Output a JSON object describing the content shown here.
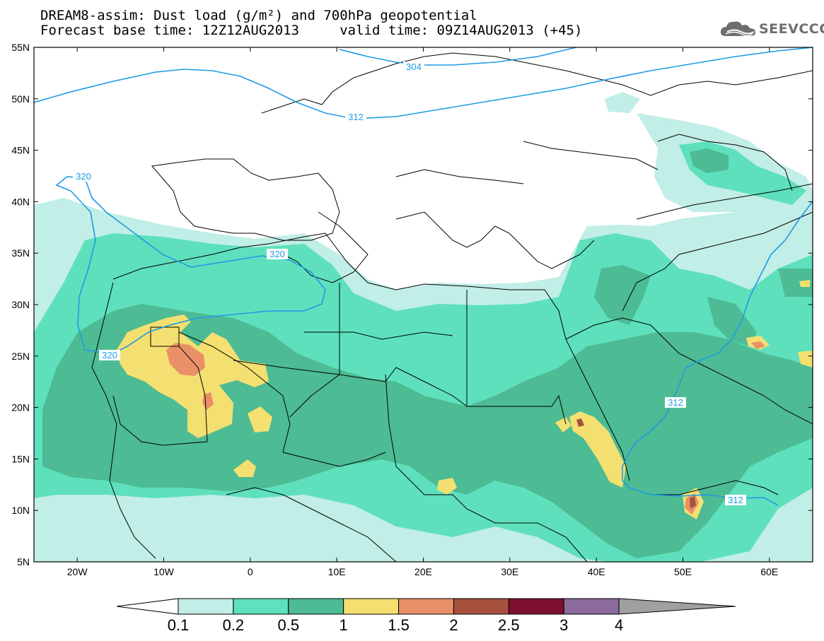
{
  "header": {
    "title_line1": "DREAM8-assim: Dust load (g/m²) and 700hPa geopotential",
    "title_line2": "Forecast base time: 12Z12AUG2013     valid time: 09Z14AUG2013 (+45)"
  },
  "logo": {
    "icon": "cloud-logo-icon",
    "text": "SEEVCCC"
  },
  "map": {
    "lon_range": [
      -25,
      65
    ],
    "lat_range": [
      5,
      55
    ],
    "lat_labels": [
      "55N",
      "50N",
      "45N",
      "40N",
      "35N",
      "30N",
      "25N",
      "20N",
      "15N",
      "10N",
      "5N"
    ],
    "lon_labels": [
      "20W",
      "10W",
      "0",
      "10E",
      "20E",
      "30E",
      "40E",
      "50E",
      "60E"
    ],
    "contour_labels": [
      "304",
      "312",
      "320",
      "320",
      "320",
      "312",
      "312"
    ]
  },
  "colorbar": {
    "labels": [
      "0.1",
      "0.2",
      "0.5",
      "1",
      "1.5",
      "2",
      "2.5",
      "3",
      "4"
    ],
    "colors": [
      "#c1eee6",
      "#5ee0bd",
      "#4dbb93",
      "#f3e071",
      "#ea9068",
      "#a6503e",
      "#7c0f2d",
      "#8b6a9c",
      "#a0a0a0"
    ],
    "under_color": "#ffffff",
    "over_color": "#a0a0a0"
  },
  "colors": {
    "contour_line": "#1e9be6",
    "country_border": "#000000",
    "background": "#ffffff"
  }
}
